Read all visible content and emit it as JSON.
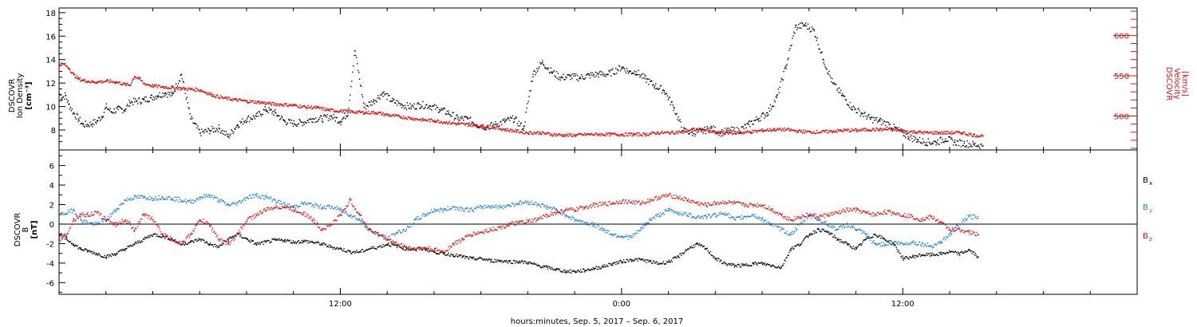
{
  "chart_data": [
    {
      "type": "scatter",
      "title": "",
      "ylabel_left": [
        "DSCOVR",
        "Ion Density",
        "[cm⁻³]"
      ],
      "ylabel_right": [
        "DSCOVR",
        "Velocity",
        "[km/s]"
      ],
      "ylim_left": [
        6.3,
        18.4
      ],
      "ylim_right": [
        458,
        634
      ],
      "yticks_left": [
        8,
        10,
        12,
        14,
        16,
        18
      ],
      "yticks_right": [
        500,
        550,
        600
      ],
      "colors": {
        "density": "#000000",
        "velocity": "#dd1111"
      },
      "series": [
        {
          "name": "Ion Density",
          "axis": "left",
          "color": "#000000",
          "x": [
            0.0,
            0.1,
            0.25,
            0.4,
            0.6,
            0.8,
            1.0,
            1.2,
            1.4,
            1.6,
            1.8,
            2.0,
            2.2,
            2.5,
            2.8,
            3.0,
            3.3,
            3.6,
            3.9,
            4.2,
            4.5,
            4.8,
            5.2,
            5.6,
            6.0,
            6.4,
            6.8,
            7.2,
            7.6,
            8.0,
            8.4,
            8.8,
            9.2,
            9.6,
            10.0,
            10.4,
            10.8,
            11.2,
            11.6,
            12.0,
            12.3,
            12.6,
            13.0,
            13.4,
            13.8,
            14.2,
            14.6,
            15.0,
            15.4,
            15.8,
            16.2,
            16.6,
            17.0,
            17.4,
            17.8,
            18.2,
            18.6,
            19.0,
            19.4,
            19.8,
            20.2,
            20.6,
            21.0,
            21.4,
            21.8,
            22.2,
            22.6,
            23.0,
            23.4,
            23.8,
            24.0,
            24.3,
            24.6,
            25.0,
            25.4,
            25.8,
            26.2,
            26.6,
            27.0,
            27.4,
            27.8,
            28.2,
            28.6,
            29.0,
            29.4,
            29.8,
            30.2,
            30.6,
            31.0,
            31.4,
            31.8,
            32.2,
            32.6,
            33.0,
            33.4,
            33.8,
            34.2,
            34.6,
            35.0,
            35.4,
            35.8,
            36.2,
            36.6,
            37.0,
            37.4,
            37.8,
            38.2,
            38.6,
            39.0,
            39.4
          ],
          "y": [
            11.1,
            10.8,
            11.0,
            10.2,
            9.5,
            9.0,
            8.5,
            8.5,
            8.6,
            8.8,
            9.2,
            10.0,
            9.6,
            9.8,
            9.8,
            10.4,
            10.5,
            10.6,
            10.8,
            11.0,
            11.2,
            11.0,
            12.8,
            9.0,
            7.8,
            8.0,
            8.2,
            7.5,
            8.5,
            9.0,
            9.2,
            9.8,
            9.5,
            8.8,
            8.6,
            8.7,
            9.0,
            9.0,
            9.2,
            8.8,
            9.5,
            14.8,
            10.0,
            10.5,
            11.2,
            10.5,
            10.2,
            10.0,
            10.2,
            10.1,
            9.8,
            9.5,
            9.0,
            9.0,
            8.5,
            8.3,
            8.5,
            8.8,
            9.0,
            8.2,
            12.8,
            13.8,
            13.0,
            12.5,
            12.6,
            12.5,
            12.7,
            12.8,
            12.8,
            13.2,
            13.4,
            13.0,
            13.0,
            12.4,
            11.8,
            11.4,
            10.0,
            8.0,
            7.8,
            7.9,
            8.2,
            7.8,
            8.0,
            8.0,
            8.5,
            9.0,
            9.5,
            10.8,
            13.5,
            16.8,
            17.0,
            16.5,
            14.0,
            12.0,
            11.0,
            10.0,
            9.5,
            9.0,
            8.8,
            8.5,
            8.0,
            7.5,
            7.2,
            7.0,
            7.0,
            7.3,
            7.0,
            6.9,
            6.8,
            6.7
          ]
        },
        {
          "name": "Velocity",
          "axis": "right",
          "color": "#dd1111",
          "x": [
            0.0,
            0.2,
            0.4,
            0.6,
            0.8,
            1.0,
            1.2,
            1.4,
            1.6,
            2.0,
            2.4,
            2.8,
            3.0,
            3.2,
            3.4,
            3.6,
            4.0,
            4.4,
            4.8,
            5.2,
            5.6,
            6.0,
            6.5,
            7.0,
            7.5,
            8.0,
            8.5,
            9.0,
            9.5,
            10.0,
            10.5,
            11.0,
            11.5,
            12.0,
            12.5,
            13.0,
            13.5,
            14.0,
            14.5,
            15.0,
            15.5,
            16.0,
            16.5,
            17.0,
            17.5,
            18.0,
            18.5,
            19.0,
            19.5,
            20.0,
            20.5,
            21.0,
            21.5,
            22.0,
            22.5,
            23.0,
            23.5,
            24.0,
            24.5,
            25.0,
            25.5,
            26.0,
            26.5,
            27.0,
            27.5,
            28.0,
            28.5,
            29.0,
            29.5,
            30.0,
            30.5,
            31.0,
            31.5,
            32.0,
            32.5,
            33.0,
            33.5,
            34.0,
            34.5,
            35.0,
            35.5,
            36.0,
            36.5,
            37.0,
            37.5,
            38.0,
            38.5,
            39.0,
            39.4
          ],
          "y": [
            565,
            565,
            560,
            552,
            547,
            545,
            544,
            543,
            543,
            544,
            543,
            540,
            539,
            550,
            547,
            541,
            538,
            537,
            536,
            535,
            534,
            533,
            527,
            523,
            521,
            519,
            518,
            516,
            515,
            514,
            512,
            511,
            508,
            507,
            506,
            505,
            505,
            502,
            500,
            498,
            496,
            495,
            493,
            491,
            490,
            488,
            487,
            484,
            482,
            480,
            480,
            478,
            477,
            477,
            478,
            478,
            478,
            478,
            478,
            478,
            480,
            480,
            481,
            484,
            484,
            480,
            480,
            480,
            481,
            483,
            484,
            484,
            482,
            481,
            481,
            482,
            483,
            483,
            484,
            484,
            484,
            482,
            481,
            480,
            480,
            480,
            480,
            477,
            476
          ]
        }
      ]
    },
    {
      "type": "scatter",
      "title": "",
      "ylabel": [
        "DSCOVR",
        "B",
        "[nT]"
      ],
      "ylim": [
        -7.2,
        7.6
      ],
      "yticks": [
        -6,
        -4,
        -2,
        0,
        2,
        4,
        6
      ],
      "zero_line": true,
      "colors": {
        "bx": "#000000",
        "by": "#1e7fd6",
        "bz": "#dd1111"
      },
      "series": [
        {
          "name": "Bx",
          "color": "#000000",
          "x": [
            0.0,
            0.3,
            0.6,
            0.9,
            1.2,
            1.6,
            2.0,
            2.4,
            2.8,
            3.2,
            3.6,
            4.0,
            4.4,
            4.8,
            5.2,
            5.6,
            6.0,
            6.4,
            6.8,
            7.2,
            7.6,
            8.0,
            8.4,
            8.8,
            9.2,
            9.6,
            10.0,
            10.4,
            10.8,
            11.2,
            11.6,
            12.0,
            12.4,
            12.8,
            13.2,
            13.6,
            14.0,
            14.4,
            14.8,
            15.2,
            15.6,
            16.0,
            16.4,
            16.8,
            17.2,
            17.6,
            18.0,
            18.4,
            18.8,
            19.2,
            19.6,
            20.0,
            20.4,
            20.8,
            21.2,
            21.6,
            22.0,
            22.4,
            22.8,
            23.2,
            23.6,
            24.0,
            24.4,
            24.8,
            25.2,
            25.6,
            26.0,
            26.4,
            26.8,
            27.2,
            27.6,
            28.0,
            28.4,
            28.8,
            29.2,
            29.6,
            30.0,
            30.4,
            30.8,
            31.2,
            31.6,
            32.0,
            32.4,
            32.8,
            33.2,
            33.6,
            34.0,
            34.4,
            34.8,
            35.2,
            35.6,
            36.0,
            36.4,
            36.8,
            37.2,
            37.6,
            38.0,
            38.4,
            38.8,
            39.2
          ],
          "y": [
            -1.0,
            -1.5,
            -2.0,
            -2.5,
            -2.7,
            -3.0,
            -3.3,
            -3.0,
            -2.5,
            -2.0,
            -1.5,
            -1.0,
            -1.2,
            -1.5,
            -2.0,
            -1.8,
            -1.5,
            -2.0,
            -2.3,
            -1.5,
            -1.0,
            -1.5,
            -2.0,
            -1.8,
            -1.6,
            -1.6,
            -1.8,
            -1.7,
            -1.8,
            -2.0,
            -2.3,
            -2.5,
            -2.8,
            -2.8,
            -2.5,
            -2.3,
            -2.0,
            -2.2,
            -2.5,
            -2.5,
            -2.5,
            -2.8,
            -3.0,
            -3.1,
            -3.3,
            -3.5,
            -3.5,
            -3.7,
            -3.7,
            -3.8,
            -3.8,
            -3.9,
            -4.2,
            -4.4,
            -4.6,
            -4.8,
            -4.8,
            -4.7,
            -4.5,
            -4.3,
            -4.0,
            -3.8,
            -3.6,
            -3.6,
            -3.8,
            -4.0,
            -3.8,
            -3.3,
            -2.5,
            -2.0,
            -2.5,
            -3.5,
            -4.0,
            -4.2,
            -4.2,
            -4.0,
            -4.0,
            -4.2,
            -4.4,
            -2.5,
            -2.0,
            -1.0,
            -0.5,
            -0.8,
            -1.5,
            -2.0,
            -2.5,
            -1.5,
            -1.0,
            -1.5,
            -2.0,
            -3.5,
            -3.3,
            -3.1,
            -3.1,
            -3.0,
            -2.8,
            -3.0,
            -2.6,
            -3.3
          ]
        },
        {
          "name": "By",
          "color": "#1e7fd6",
          "x": [
            0.0,
            0.3,
            0.6,
            0.9,
            1.2,
            1.6,
            2.0,
            2.4,
            2.8,
            3.2,
            3.6,
            4.0,
            4.4,
            4.8,
            5.2,
            5.6,
            6.0,
            6.4,
            6.8,
            7.2,
            7.6,
            8.0,
            8.4,
            8.8,
            9.2,
            9.6,
            10.0,
            10.4,
            10.8,
            11.2,
            11.6,
            12.0,
            12.4,
            12.8,
            13.2,
            13.6,
            14.0,
            14.4,
            14.8,
            15.2,
            15.6,
            16.0,
            16.4,
            16.8,
            17.2,
            17.6,
            18.0,
            18.4,
            18.8,
            19.2,
            19.6,
            20.0,
            20.4,
            20.8,
            21.2,
            21.6,
            22.0,
            22.4,
            22.8,
            23.2,
            23.6,
            24.0,
            24.4,
            24.8,
            25.2,
            25.6,
            26.0,
            26.4,
            26.8,
            27.2,
            27.6,
            28.0,
            28.4,
            28.8,
            29.2,
            29.6,
            30.0,
            30.4,
            30.8,
            31.2,
            31.6,
            32.0,
            32.4,
            32.8,
            33.2,
            33.6,
            34.0,
            34.4,
            34.8,
            35.2,
            35.6,
            36.0,
            36.4,
            36.8,
            37.2,
            37.6,
            38.0,
            38.4,
            38.8,
            39.2
          ],
          "y": [
            1.0,
            1.2,
            1.5,
            0.5,
            0.2,
            0.0,
            0.5,
            1.5,
            2.5,
            2.8,
            2.8,
            2.7,
            2.8,
            2.7,
            2.5,
            2.3,
            2.8,
            3.0,
            2.5,
            2.0,
            2.2,
            2.8,
            3.0,
            2.8,
            2.5,
            2.0,
            1.8,
            2.2,
            2.0,
            1.8,
            1.8,
            1.5,
            1.0,
            0.5,
            -0.5,
            -1.0,
            -1.5,
            -0.8,
            -0.5,
            0.5,
            1.0,
            1.5,
            1.5,
            1.8,
            1.6,
            1.5,
            1.8,
            1.9,
            1.8,
            2.0,
            2.2,
            2.3,
            2.1,
            1.8,
            1.5,
            1.0,
            0.5,
            0.2,
            0.0,
            -0.5,
            -1.0,
            -1.2,
            -1.3,
            -0.5,
            0.5,
            1.0,
            1.5,
            1.2,
            1.0,
            0.8,
            0.8,
            1.0,
            1.2,
            0.5,
            0.8,
            1.0,
            0.5,
            0.0,
            -0.5,
            -1.0,
            0.0,
            1.0,
            0.5,
            0.0,
            -0.5,
            0.0,
            -0.5,
            -1.0,
            -2.0,
            -2.0,
            -1.8,
            -2.0,
            -1.8,
            -2.0,
            -2.2,
            -1.8,
            -1.0,
            0.0,
            0.8,
            0.8
          ]
        },
        {
          "name": "Bz",
          "color": "#dd1111",
          "x": [
            0.0,
            0.3,
            0.6,
            0.9,
            1.2,
            1.6,
            2.0,
            2.4,
            2.8,
            3.2,
            3.6,
            4.0,
            4.4,
            4.8,
            5.2,
            5.6,
            6.0,
            6.4,
            6.8,
            7.2,
            7.6,
            8.0,
            8.4,
            8.8,
            9.2,
            9.6,
            10.0,
            10.4,
            10.8,
            11.2,
            11.6,
            12.0,
            12.4,
            12.8,
            13.2,
            13.6,
            14.0,
            14.4,
            14.8,
            15.2,
            15.6,
            16.0,
            16.4,
            16.8,
            17.2,
            17.6,
            18.0,
            18.4,
            18.8,
            19.2,
            19.6,
            20.0,
            20.4,
            20.8,
            21.2,
            21.6,
            22.0,
            22.4,
            22.8,
            23.2,
            23.6,
            24.0,
            24.4,
            24.8,
            25.2,
            25.6,
            26.0,
            26.4,
            26.8,
            27.2,
            27.6,
            28.0,
            28.4,
            28.8,
            29.2,
            29.6,
            30.0,
            30.4,
            30.8,
            31.2,
            31.6,
            32.0,
            32.4,
            32.8,
            33.2,
            33.6,
            34.0,
            34.4,
            34.8,
            35.2,
            35.6,
            36.0,
            36.4,
            36.8,
            37.2,
            37.6,
            38.0,
            38.4,
            38.8,
            39.2
          ],
          "y": [
            -1.5,
            -1.0,
            0.5,
            1.0,
            1.0,
            1.2,
            0.5,
            0.0,
            0.5,
            -0.5,
            1.0,
            0.5,
            -1.0,
            -1.5,
            -2.0,
            -1.0,
            0.5,
            0.0,
            -1.5,
            -2.0,
            -1.0,
            0.5,
            1.0,
            1.5,
            1.8,
            1.8,
            1.5,
            1.2,
            0.5,
            -0.5,
            0.0,
            1.0,
            2.5,
            1.0,
            -0.5,
            -1.0,
            -1.5,
            -2.0,
            -2.3,
            -2.5,
            -2.4,
            -2.6,
            -2.8,
            -2.0,
            -1.5,
            -1.0,
            -0.8,
            -0.5,
            -0.3,
            0.0,
            0.2,
            0.3,
            0.5,
            1.0,
            1.2,
            1.5,
            1.5,
            1.8,
            2.0,
            2.1,
            2.2,
            2.4,
            2.3,
            2.2,
            2.5,
            2.8,
            3.0,
            2.8,
            2.5,
            2.2,
            2.0,
            2.2,
            2.3,
            2.2,
            2.0,
            2.0,
            2.0,
            1.5,
            1.0,
            0.5,
            0.8,
            1.0,
            0.8,
            1.0,
            1.2,
            1.5,
            1.5,
            1.2,
            1.0,
            1.3,
            1.2,
            1.0,
            0.8,
            0.5,
            0.8,
            0.2,
            -0.5,
            -0.5,
            -0.8,
            -1.0
          ]
        }
      ]
    }
  ],
  "series_labels": {
    "bx": {
      "main": "B",
      "sub": "x"
    },
    "by": {
      "main": "B",
      "sub": "y"
    },
    "bz": {
      "main": "B",
      "sub": "z"
    }
  },
  "x_axis": {
    "range_hours": [
      0,
      46
    ],
    "tick_labels": [
      {
        "hour": 12,
        "label": "12:00"
      },
      {
        "hour": 24,
        "label": "0:00"
      },
      {
        "hour": 36,
        "label": "12:00"
      }
    ],
    "title": "hours:minutes,  Sep.  5, 2017  –  Sep.  6, 2017"
  }
}
